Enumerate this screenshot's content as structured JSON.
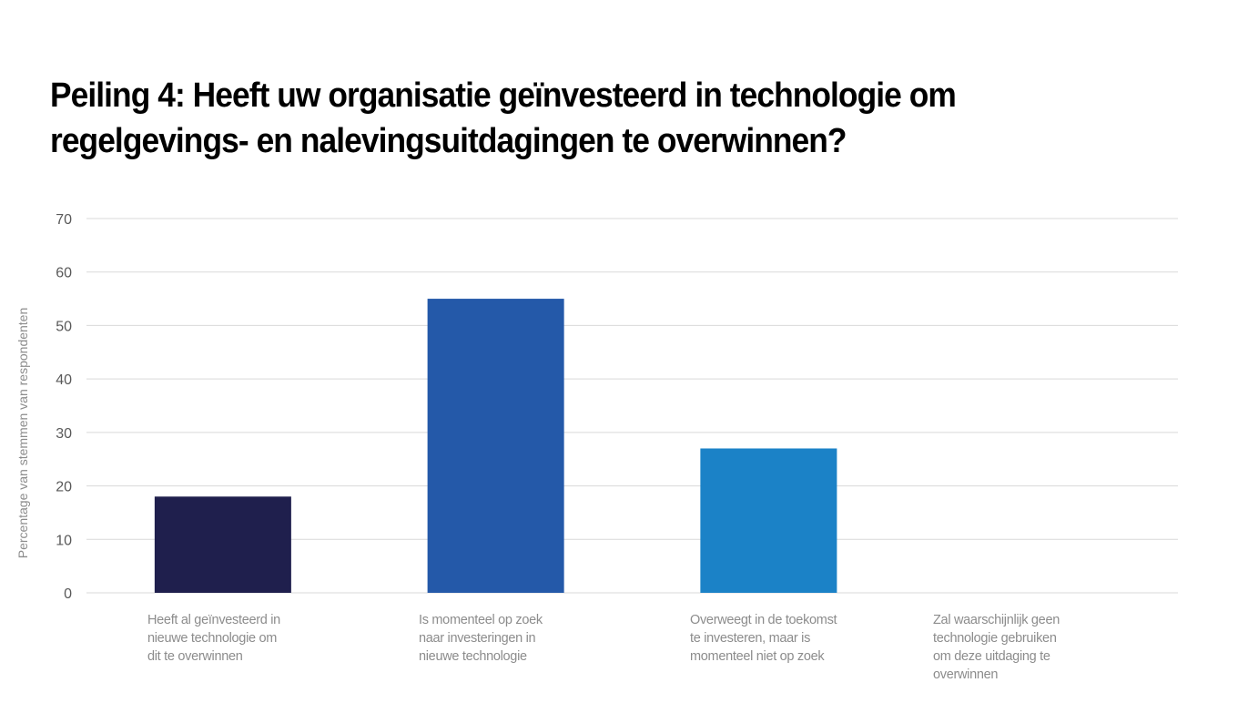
{
  "title_lines": [
    "Peiling 4: Heeft uw organisatie geïnvesteerd in technologie om",
    "regelgevings- en nalevingsuitdagingen te overwinnen?"
  ],
  "chart_data": {
    "type": "bar",
    "title": "Peiling 4: Heeft uw organisatie geïnvesteerd in technologie om regelgevings- en nalevingsuitdagingen te overwinnen?",
    "xlabel": "",
    "ylabel": "Percentage van stemmen van respondenten",
    "ylim": [
      0,
      70
    ],
    "yticks": [
      0,
      10,
      20,
      30,
      40,
      50,
      60,
      70
    ],
    "grid": true,
    "legend": "none",
    "categories": [
      "Heeft al geïnvesteerd in nieuwe technologie om dit te overwinnen",
      "Is momenteel op zoek naar investeringen in nieuwe technologie",
      "Overweegt in de toekomst te investeren, maar is momenteel niet op zoek",
      "Zal waarschijnlijk geen technologie gebruiken om deze uitdaging te overwinnen"
    ],
    "category_label_lines": [
      [
        "Heeft al geïnvesteerd in",
        "nieuwe technologie om",
        "dit te overwinnen"
      ],
      [
        "Is momenteel op zoek",
        "naar investeringen in",
        "nieuwe technologie"
      ],
      [
        "Overweegt in de toekomst",
        "te investeren, maar is",
        "momenteel niet op zoek"
      ],
      [
        "Zal waarschijnlijk geen",
        "technologie gebruiken",
        "om deze uitdaging te",
        "overwinnen"
      ]
    ],
    "values": [
      18,
      55,
      27,
      0
    ],
    "colors": [
      "#1f1f4d",
      "#2459a9",
      "#1b82c7",
      "#1b82c7"
    ]
  }
}
